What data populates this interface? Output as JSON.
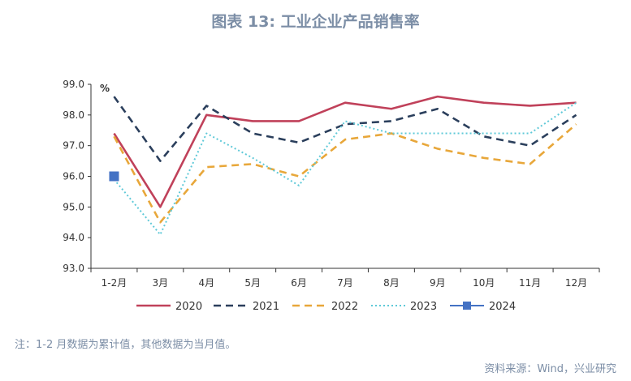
{
  "title": "图表 13: 工业企业产品销售率",
  "note": "注：1-2 月数据为累计值，其他数据为当月值。",
  "source": "资料来源：Wind，兴业研究",
  "chart_data": {
    "type": "line",
    "unit_label": "%",
    "categories": [
      "1-2月",
      "3月",
      "4月",
      "5月",
      "6月",
      "7月",
      "8月",
      "9月",
      "10月",
      "11月",
      "12月"
    ],
    "ylim": [
      93.0,
      99.0
    ],
    "yticks": [
      "93.0",
      "94.0",
      "95.0",
      "96.0",
      "97.0",
      "98.0",
      "99.0"
    ],
    "legend_position": "bottom",
    "series": [
      {
        "name": "2020",
        "color": "#c0415a",
        "style": "solid",
        "values": [
          97.4,
          95.0,
          98.0,
          97.8,
          97.8,
          98.4,
          98.2,
          98.6,
          98.4,
          98.3,
          98.4
        ]
      },
      {
        "name": "2021",
        "color": "#2b3f5c",
        "style": "dashed",
        "values": [
          98.6,
          96.5,
          98.3,
          97.4,
          97.1,
          97.7,
          97.8,
          98.2,
          97.3,
          97.0,
          98.0
        ]
      },
      {
        "name": "2022",
        "color": "#e8a73a",
        "style": "dashed",
        "values": [
          97.3,
          94.5,
          96.3,
          96.4,
          96.0,
          97.2,
          97.4,
          96.9,
          96.6,
          96.4,
          97.7
        ]
      },
      {
        "name": "2023",
        "color": "#5fc9d8",
        "style": "dotted",
        "values": [
          95.9,
          94.1,
          97.4,
          96.6,
          95.7,
          97.8,
          97.4,
          97.4,
          97.4,
          97.4,
          98.4
        ]
      },
      {
        "name": "2024",
        "color": "#4472c4",
        "style": "marker",
        "values": [
          96.0,
          null,
          null,
          null,
          null,
          null,
          null,
          null,
          null,
          null,
          null
        ]
      }
    ]
  }
}
